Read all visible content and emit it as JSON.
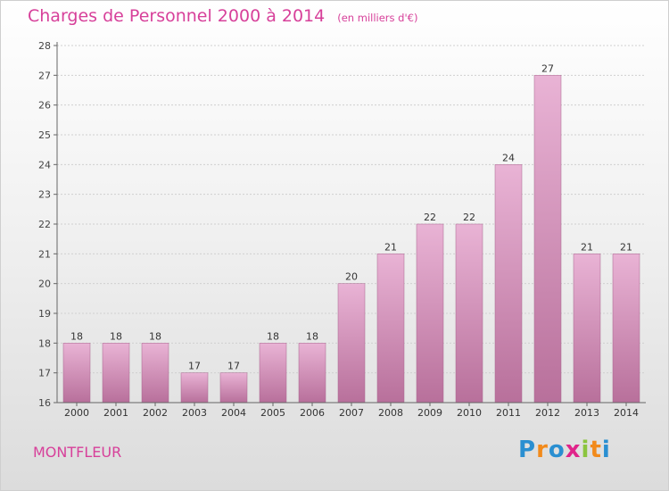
{
  "title": "Charges de Personnel 2000 à 2014",
  "subtitle": "(en milliers d'€)",
  "location": "MONTFLEUR",
  "brand": {
    "letters": [
      "P",
      "r",
      "o",
      "x",
      "i",
      "t",
      "i"
    ],
    "colors": [
      "#2a8fd1",
      "#f28a1b",
      "#2a8fd1",
      "#e0248a",
      "#8bc53f",
      "#f28a1b",
      "#2a8fd1"
    ]
  },
  "colors": {
    "bar_light": "#e9b3d5",
    "bar_dark": "#b8709b",
    "accent": "#d7409a"
  },
  "chart_data": {
    "type": "bar",
    "categories": [
      "2000",
      "2001",
      "2002",
      "2003",
      "2004",
      "2005",
      "2006",
      "2007",
      "2008",
      "2009",
      "2010",
      "2011",
      "2012",
      "2013",
      "2014"
    ],
    "values": [
      18,
      18,
      18,
      17,
      17,
      18,
      18,
      20,
      21,
      22,
      22,
      24,
      27,
      21,
      21
    ],
    "ylim": [
      16,
      28
    ],
    "yticks": [
      16,
      17,
      18,
      19,
      20,
      21,
      22,
      23,
      24,
      25,
      26,
      27,
      28
    ],
    "grid": true,
    "xlabel": "",
    "ylabel": ""
  }
}
